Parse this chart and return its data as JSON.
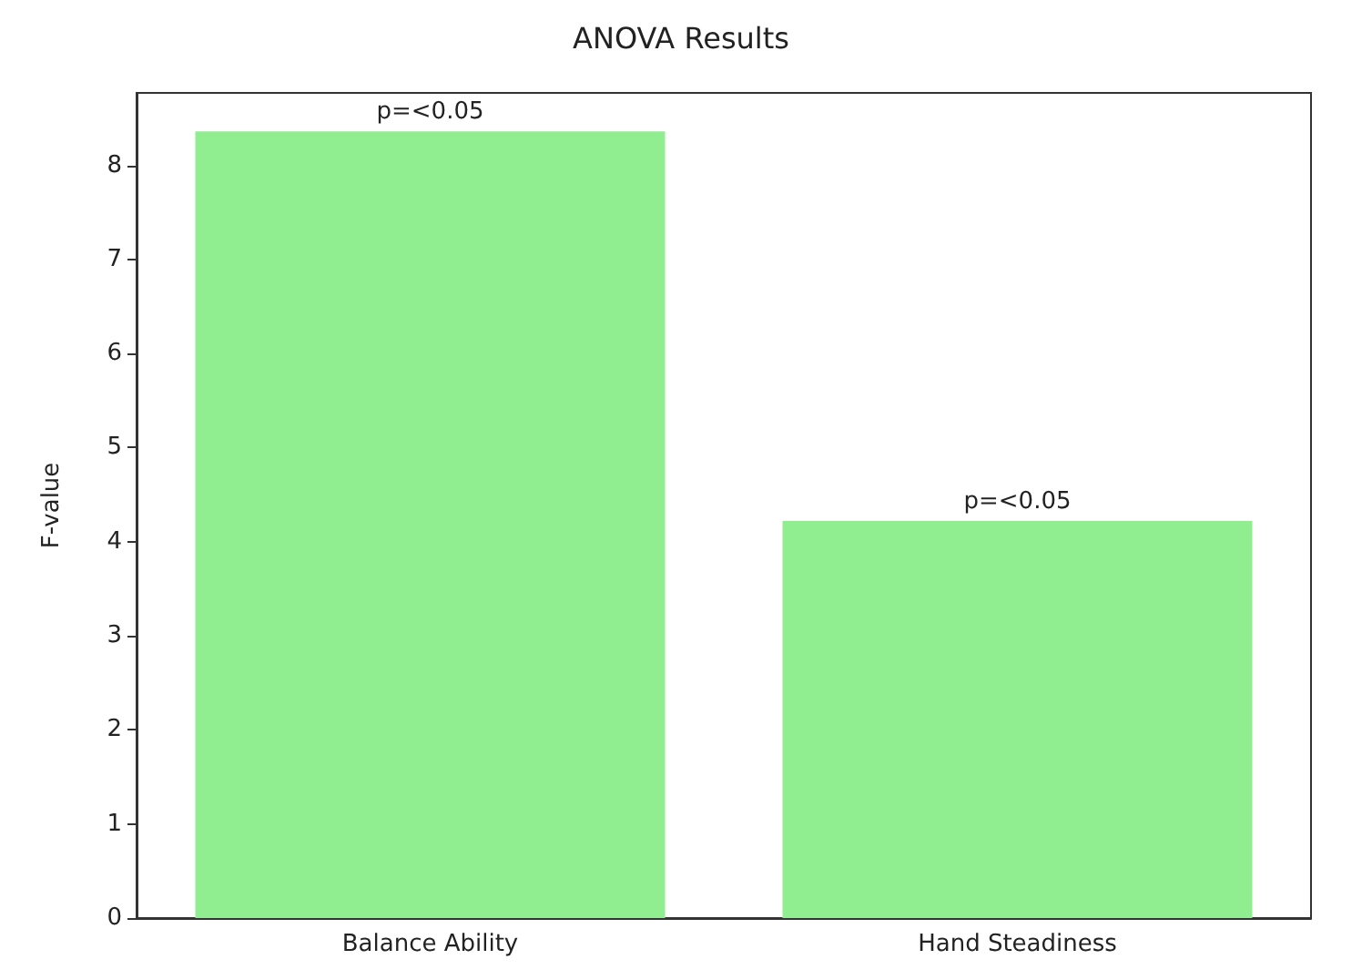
{
  "chart_data": {
    "type": "bar",
    "title": "ANOVA Results",
    "ylabel": "F-value",
    "categories": [
      "Balance Ability",
      "Hand Steadiness"
    ],
    "values": [
      8.36,
      4.22
    ],
    "color": "#90ee90",
    "value_labels": [
      "p=<0.05",
      "p=<0.05"
    ],
    "ylim": [
      0,
      8.77
    ],
    "yticks": [
      0,
      1,
      2,
      3,
      4,
      5,
      6,
      7,
      8
    ],
    "grid": false
  }
}
